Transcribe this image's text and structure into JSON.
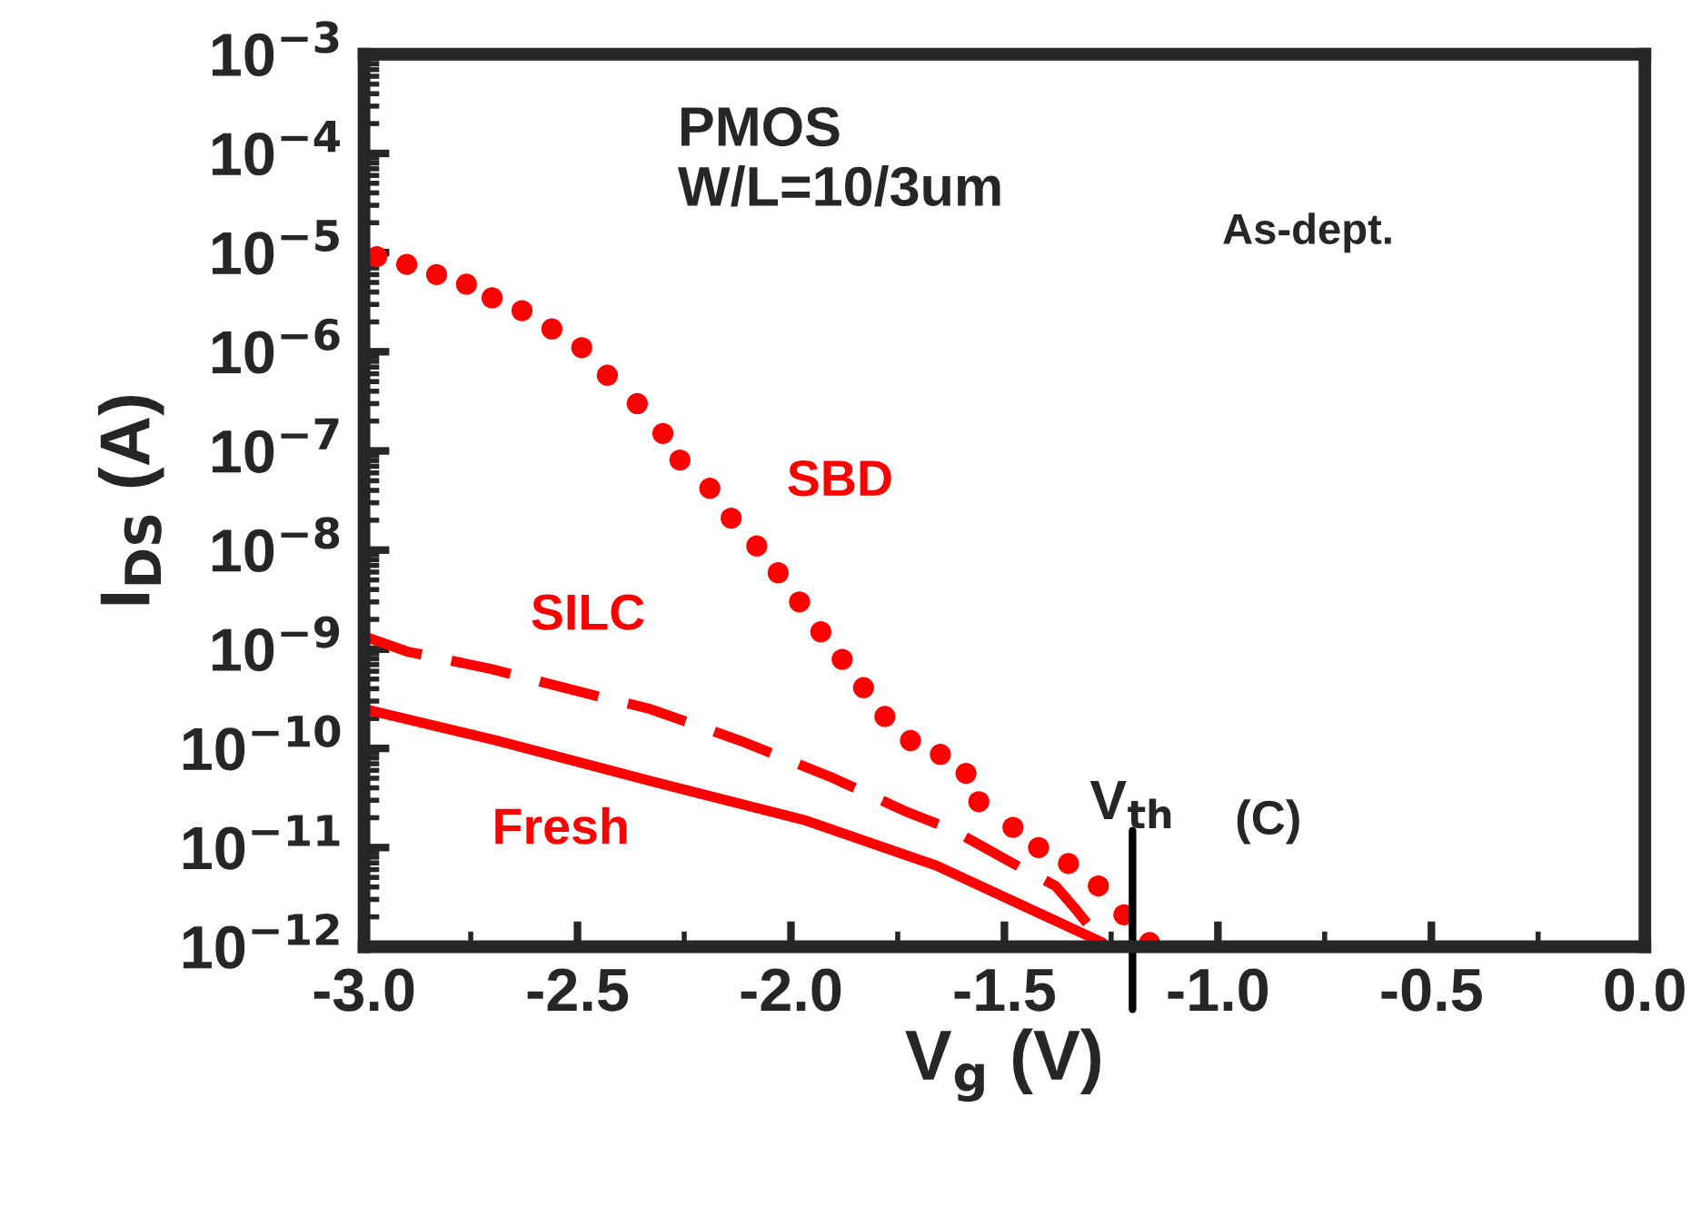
{
  "chart_data": {
    "type": "line",
    "xlabel": "V$_{g}$ (V)",
    "ylabel": "I$_{DS}$ (A)",
    "log": "y",
    "grid": false,
    "legend": false,
    "xlim": [
      -3.0,
      0.0
    ],
    "ylim": [
      1e-12,
      0.001
    ],
    "xticks": [
      {
        "value": -3.0,
        "label": "-3.0"
      },
      {
        "value": -2.5,
        "label": "-2.5"
      },
      {
        "value": -2.0,
        "label": "-2.0"
      },
      {
        "value": -1.5,
        "label": "-1.5"
      },
      {
        "value": -1.0,
        "label": "-1.0"
      },
      {
        "value": -0.5,
        "label": "-0.5"
      },
      {
        "value": 0.0,
        "label": "0.0"
      }
    ],
    "yticks": [
      {
        "value": 1e-12,
        "label": "10$^{−12}$"
      },
      {
        "value": 1e-11,
        "label": "10$^{−11}$"
      },
      {
        "value": 1e-10,
        "label": "10$^{−10}$"
      },
      {
        "value": 1e-09,
        "label": "10$^{−9}$"
      },
      {
        "value": 1e-08,
        "label": "10$^{−8}$"
      },
      {
        "value": 1e-07,
        "label": "10$^{−7}$"
      },
      {
        "value": 1e-06,
        "label": "10$^{−6}$"
      },
      {
        "value": 1e-05,
        "label": "10$^{−5}$"
      },
      {
        "value": 0.0001,
        "label": "10$^{−4}$"
      },
      {
        "value": 0.001,
        "label": "10$^{−3}$"
      }
    ],
    "series": [
      {
        "name": "SBD",
        "color": "#ff0000",
        "type": "scatter",
        "marker": "circle",
        "x": [
          -2.97,
          -2.9,
          -2.83,
          -2.76,
          -2.7,
          -2.63,
          -2.56,
          -2.49,
          -2.43,
          -2.36,
          -2.3,
          -2.26,
          -2.19,
          -2.14,
          -2.08,
          -2.03,
          -1.98,
          -1.93,
          -1.88,
          -1.83,
          -1.78,
          -1.72,
          -1.65,
          -1.59,
          -1.56,
          -1.48,
          -1.42,
          -1.35,
          -1.28,
          -1.22,
          -1.16
        ],
        "values": [
          9.1e-06,
          7.6e-06,
          6e-06,
          4.8e-06,
          3.5e-06,
          2.6e-06,
          1.7e-06,
          1.1e-06,
          5.8e-07,
          3e-07,
          1.5e-07,
          8.1e-08,
          4.2e-08,
          2.1e-08,
          1.1e-08,
          5.9e-09,
          3e-09,
          1.5e-09,
          7.9e-10,
          4.1e-10,
          2.1e-10,
          1.2e-10,
          8.7e-11,
          5.6e-11,
          2.9e-11,
          1.6e-11,
          1e-11,
          6.9e-12,
          4.1e-12,
          2.1e-12,
          1.1e-12
        ]
      },
      {
        "name": "SILC",
        "color": "#ff0000",
        "line_style": "dashed",
        "x": [
          -3.0,
          -2.9,
          -2.7,
          -2.47,
          -2.33,
          -2.12,
          -1.9,
          -1.73,
          -1.62,
          -1.46,
          -1.38,
          -1.33,
          -1.27
        ],
        "values": [
          1.35e-09,
          9.5e-10,
          6.3e-10,
          3.5e-10,
          2.5e-10,
          1.2e-10,
          5e-11,
          2.3e-11,
          1.5e-11,
          6.2e-12,
          4.1e-12,
          2.3e-12,
          1.1e-12
        ]
      },
      {
        "name": "Fresh",
        "color": "#ff0000",
        "line_style": "solid",
        "x": [
          -3.0,
          -2.69,
          -2.33,
          -1.97,
          -1.66,
          -1.4,
          -1.27
        ],
        "values": [
          2.5e-10,
          1.2e-10,
          4.7e-11,
          1.9e-11,
          6.6e-12,
          2e-12,
          1.1e-12
        ]
      }
    ],
    "ref_lines": [
      {
        "axis": "x",
        "value": -1.2,
        "label": "V$_{th}$",
        "color": "#000000"
      }
    ],
    "annotations": [
      "PMOS\nW/L=10/3um",
      "As-dept.",
      "(C)"
    ]
  }
}
